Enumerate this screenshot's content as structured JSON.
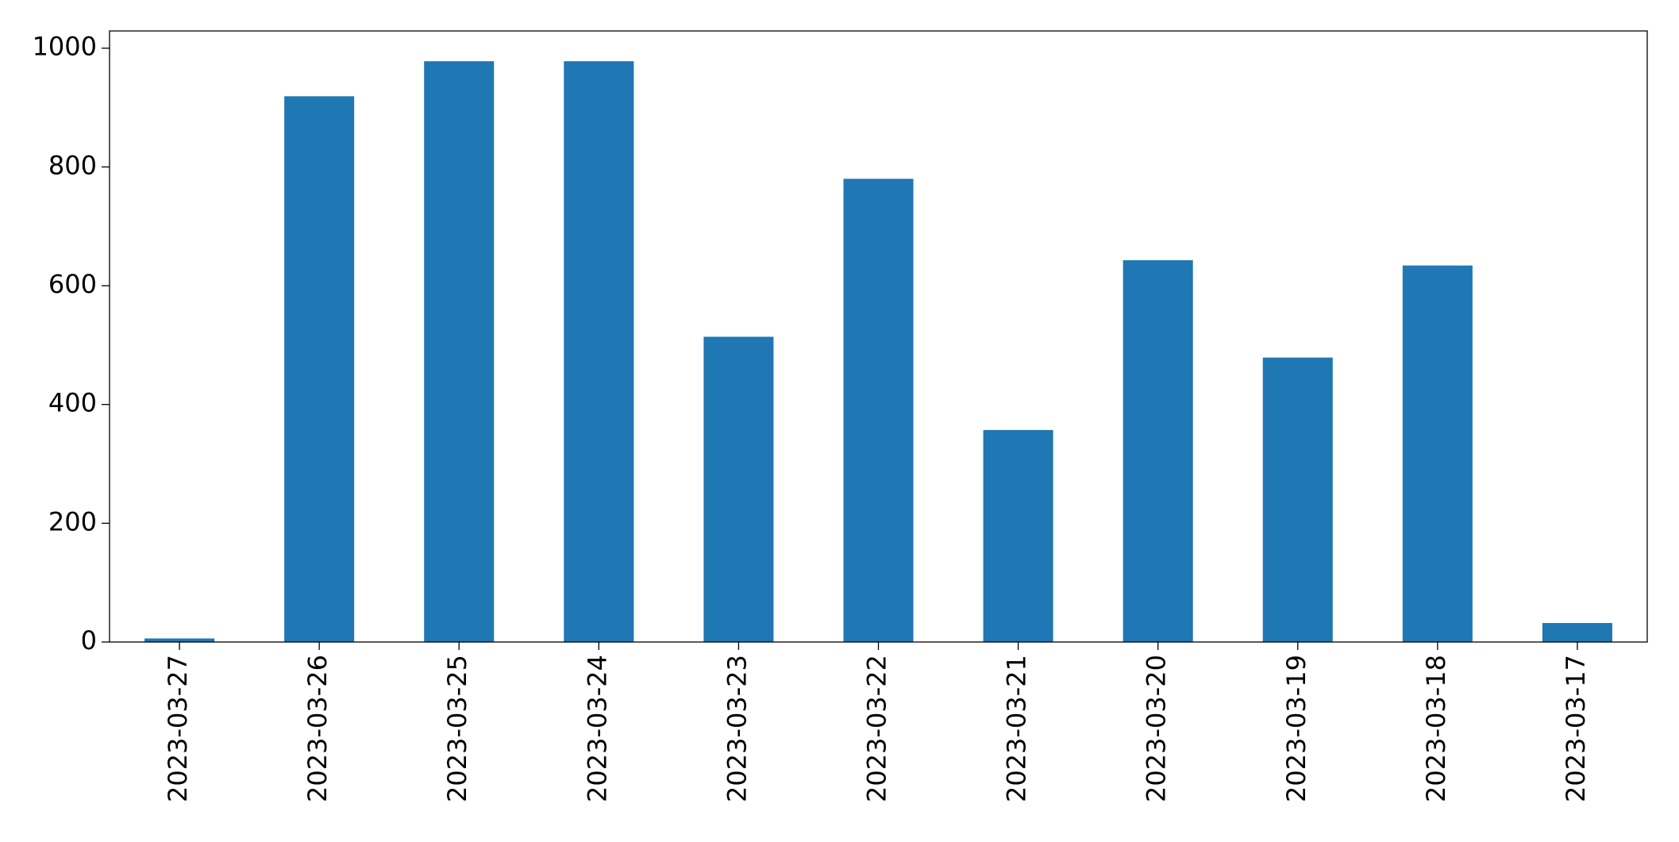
{
  "chart_data": {
    "type": "bar",
    "categories": [
      "2023-03-27",
      "2023-03-26",
      "2023-03-25",
      "2023-03-24",
      "2023-03-23",
      "2023-03-22",
      "2023-03-21",
      "2023-03-20",
      "2023-03-19",
      "2023-03-18",
      "2023-03-17"
    ],
    "values": [
      6,
      919,
      978,
      978,
      514,
      780,
      357,
      643,
      479,
      634,
      32
    ],
    "color": "#1f77b4",
    "ylim": [
      0,
      1029
    ],
    "yticks": [
      0,
      200,
      400,
      600,
      800,
      1000
    ],
    "grid": false
  }
}
